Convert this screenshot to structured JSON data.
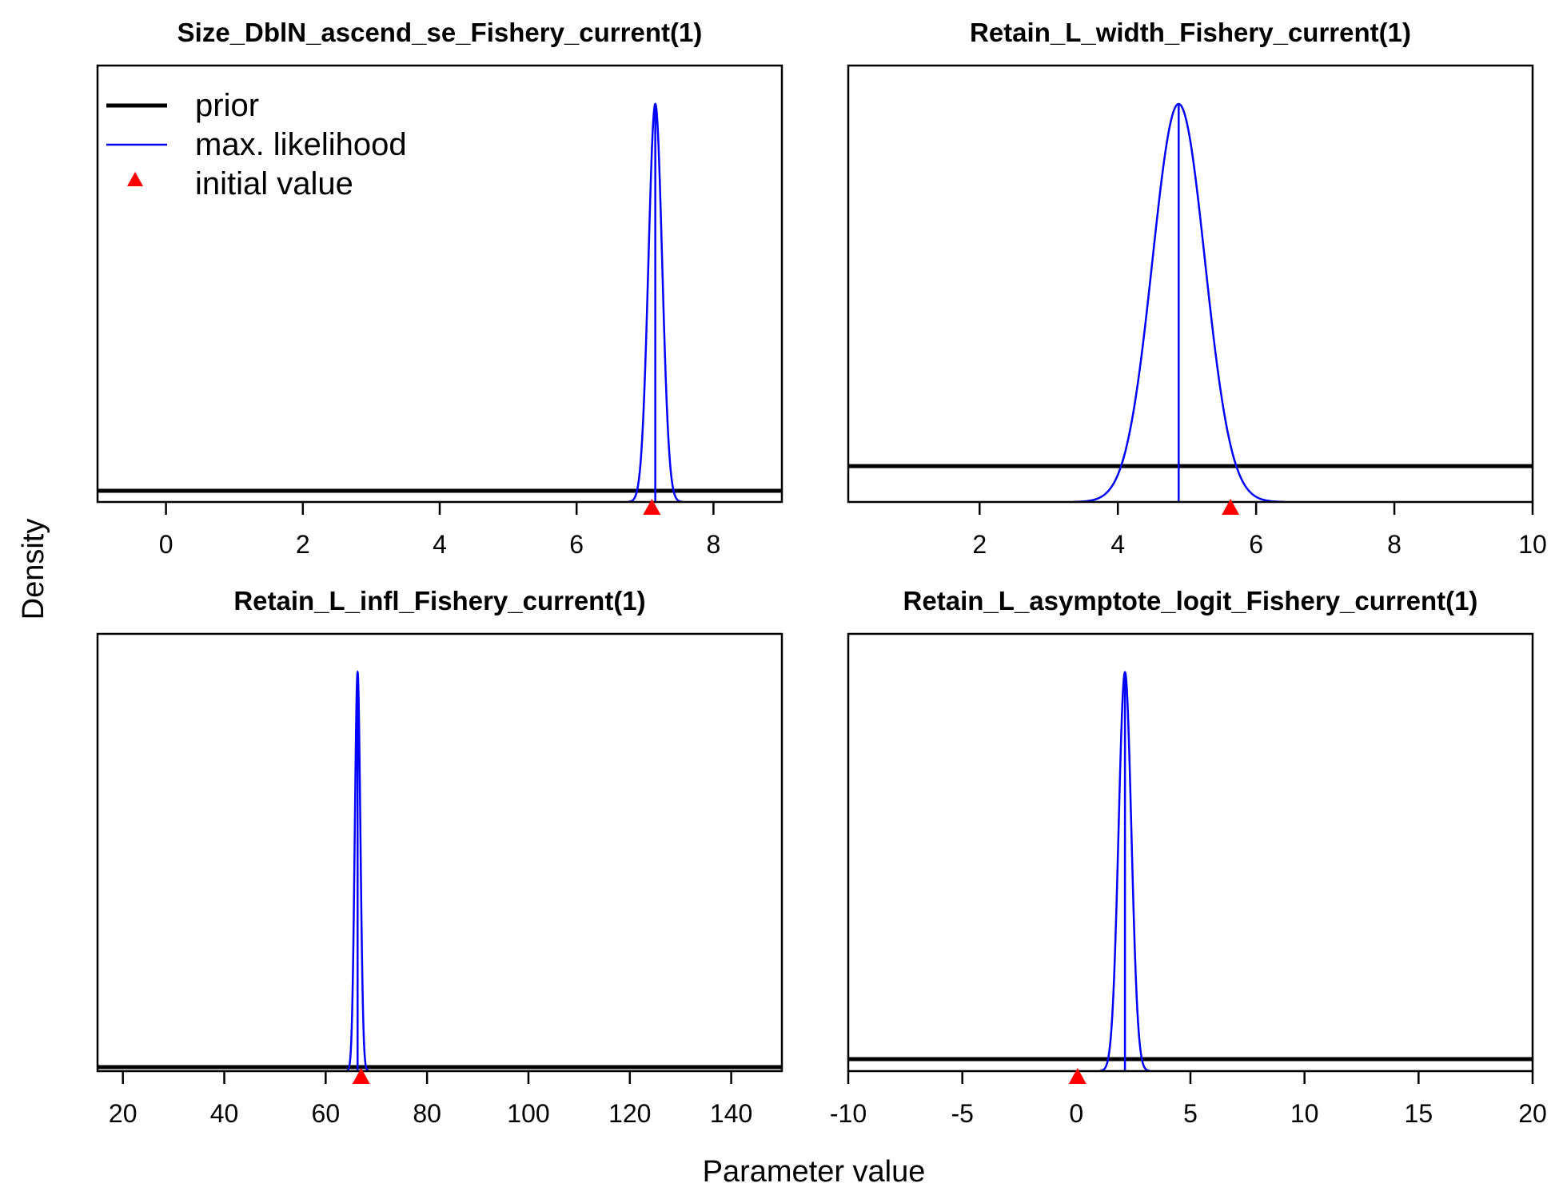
{
  "figure": {
    "xlabel": "Parameter value",
    "ylabel": "Density"
  },
  "legend": {
    "placement": "top-left of first panel",
    "items": [
      {
        "label": "prior",
        "style": "thick-line",
        "color": "#000000"
      },
      {
        "label": "max. likelihood",
        "style": "line",
        "color": "#0000ff"
      },
      {
        "label": "initial value",
        "style": "triangle",
        "color": "#ff0000"
      }
    ]
  },
  "chart_data": [
    {
      "type": "line",
      "title": "Size_DblN_ascend_se_Fishery_current(1)",
      "xlim": [
        -1,
        9
      ],
      "xticks": [
        0,
        2,
        4,
        6,
        8
      ],
      "xtick_labels": [
        "0",
        "2",
        "4",
        "6",
        "8"
      ],
      "prior_density_rel": 0.028,
      "mle": 7.15,
      "mle_sd": 0.1,
      "initial_value": 7.1
    },
    {
      "type": "line",
      "title": "Retain_L_width_Fishery_current(1)",
      "xlim": [
        0.1,
        10
      ],
      "xticks": [
        2,
        4,
        6,
        8,
        10
      ],
      "xtick_labels": [
        "2",
        "4",
        "6",
        "8",
        "10"
      ],
      "prior_density_rel": 0.09,
      "mle": 4.88,
      "mle_sd": 0.38,
      "initial_value": 5.63
    },
    {
      "type": "line",
      "title": "Retain_L_infl_Fishery_current(1)",
      "xlim": [
        15,
        150
      ],
      "xticks": [
        20,
        40,
        60,
        80,
        100,
        120,
        140
      ],
      "xtick_labels": [
        "20",
        "40",
        "60",
        "80",
        "100",
        "120",
        "140"
      ],
      "prior_density_rel": 0.01,
      "mle": 66.3,
      "mle_sd": 0.55,
      "initial_value": 67
    },
    {
      "type": "line",
      "title": "Retain_L_asymptote_logit_Fishery_current(1)",
      "xlim": [
        -10,
        20
      ],
      "xticks": [
        -10,
        -5,
        0,
        5,
        10,
        15,
        20
      ],
      "xtick_labels": [
        "-10",
        "-5",
        "0",
        "5",
        "10",
        "15",
        "20"
      ],
      "prior_density_rel": 0.03,
      "mle": 2.13,
      "mle_sd": 0.28,
      "initial_value": 0.05
    }
  ]
}
